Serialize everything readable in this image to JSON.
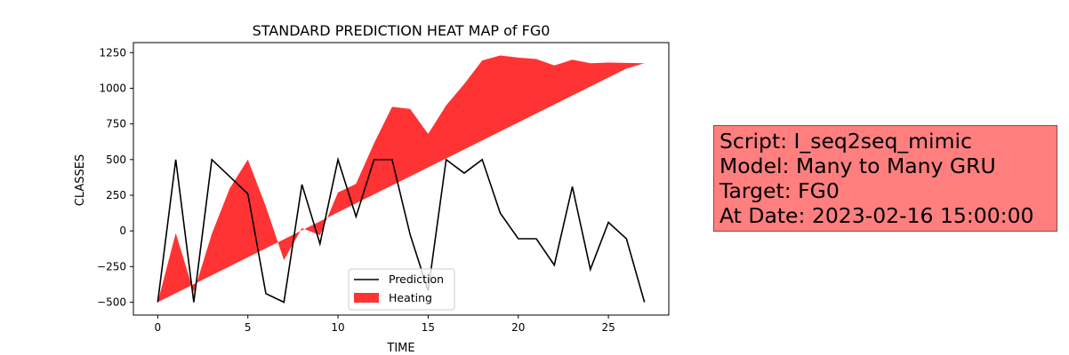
{
  "chart_data": {
    "type": "line",
    "title": "STANDARD PREDICTION HEAT MAP of FG0",
    "xlabel": "TIME",
    "ylabel": "CLASSES",
    "xlim": [
      -1.35,
      28.35
    ],
    "ylim": [
      -590,
      1320
    ],
    "x_ticks": [
      0,
      5,
      10,
      15,
      20,
      25
    ],
    "y_ticks": [
      -500,
      -250,
      0,
      250,
      500,
      750,
      1000,
      1250
    ],
    "grid": false,
    "legend": {
      "placement": "lower-center",
      "entries": [
        "Prediction",
        "Heating"
      ]
    },
    "series": [
      {
        "name": "Prediction",
        "color": "#000000",
        "x": [
          0,
          1,
          2,
          3,
          4,
          5,
          6,
          7,
          8,
          9,
          10,
          11,
          12,
          13,
          14,
          15,
          16,
          17,
          18,
          19,
          20,
          21,
          22,
          23,
          24,
          25,
          26,
          27
        ],
        "values": [
          -500,
          500,
          -500,
          500,
          380,
          260,
          -440,
          -500,
          325,
          -90,
          500,
          100,
          500,
          500,
          -25,
          -420,
          500,
          405,
          500,
          125,
          -55,
          -55,
          -240,
          310,
          -270,
          60,
          -55,
          -500
        ]
      }
    ],
    "heating": {
      "name": "Heating",
      "color": "#ff0000",
      "alpha": 0.8,
      "x": [
        0,
        1,
        2,
        3,
        4,
        5,
        6,
        7,
        8,
        9,
        10,
        11,
        12,
        13,
        14,
        15,
        16,
        17,
        18,
        19,
        20,
        21,
        22,
        23,
        24,
        25,
        26,
        27
      ],
      "baseline": [
        -500,
        -437,
        -374,
        -311,
        -248,
        -185,
        -122,
        -59,
        4,
        67,
        130,
        193,
        256,
        319,
        382,
        445,
        508,
        571,
        634,
        697,
        760,
        823,
        886,
        949,
        1012,
        1075,
        1138,
        1175
      ],
      "upper": [
        -500,
        -15,
        -430,
        -20,
        300,
        500,
        170,
        -205,
        20,
        -30,
        270,
        330,
        615,
        870,
        855,
        680,
        880,
        1030,
        1195,
        1230,
        1215,
        1205,
        1160,
        1200,
        1175,
        1180,
        1178,
        1175
      ]
    }
  },
  "info_box": {
    "background": "#ff7f7f",
    "lines": [
      "Script: I_seq2seq_mimic",
      "Model: Many to Many GRU",
      "Target: FG0",
      "At Date: 2023-02-16 15:00:00"
    ]
  }
}
